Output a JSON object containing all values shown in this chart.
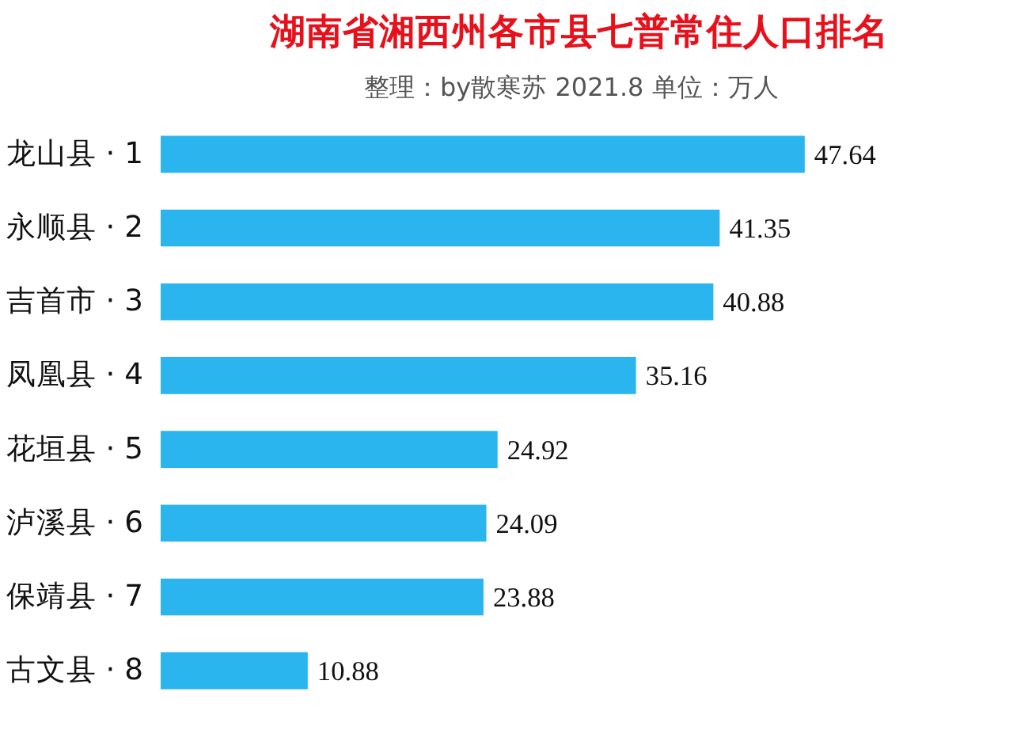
{
  "chart_data": {
    "type": "bar",
    "orientation": "horizontal",
    "title": "湖南省湘西州各市县七普常住人口排名",
    "subtitle": "整理：by散寒苏  2021.8  单位：万人",
    "categories": [
      "龙山县 · 1",
      "永顺县 · 2",
      "吉首市 · 3",
      "凤凰县 · 4",
      "花垣县 · 5",
      "泸溪县 · 6",
      "保靖县 · 7",
      "古文县 · 8"
    ],
    "values": [
      47.64,
      41.35,
      40.88,
      35.16,
      24.92,
      24.09,
      23.88,
      10.88
    ],
    "color": "#2bb5ee",
    "data_labels": true,
    "tick_labels": "y",
    "grid": false
  }
}
